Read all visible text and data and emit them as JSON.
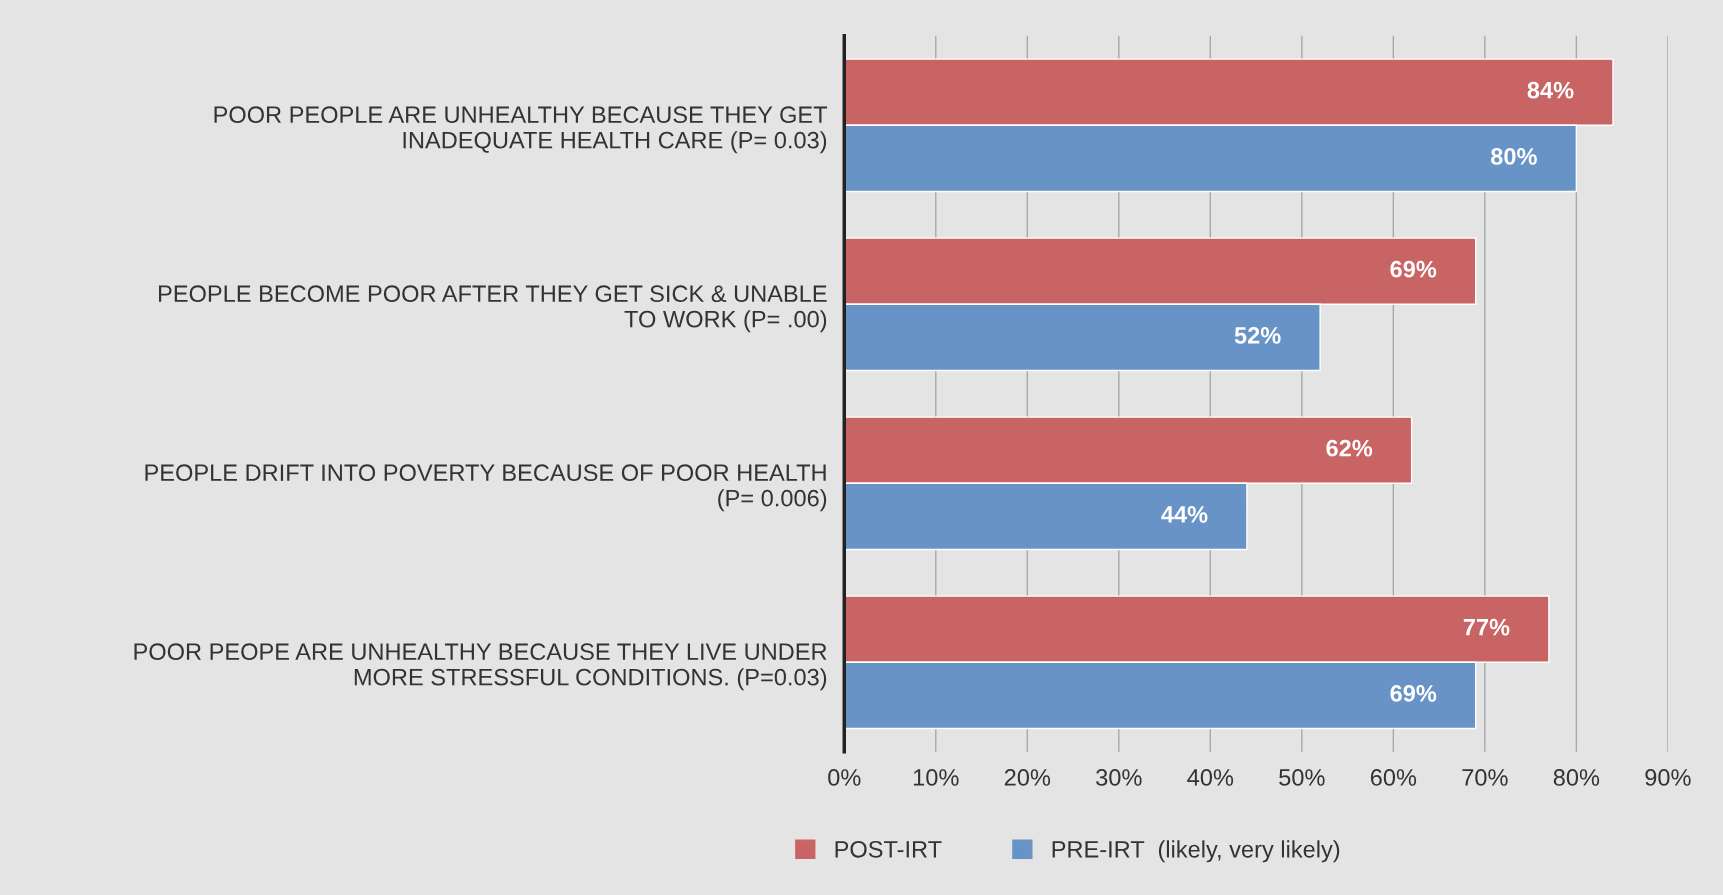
{
  "chart_data": {
    "type": "bar",
    "orientation": "horizontal",
    "categories": [
      "POOR PEOPLE ARE UNHEALTHY BECAUSE THEY GET INADEQUATE HEALTH CARE (P= 0.03)",
      "PEOPLE BECOME POOR AFTER THEY GET SICK & UNABLE TO WORK (P= .00)",
      "PEOPLE DRIFT INTO POVERTY BECAUSE OF POOR HEALTH (P= 0.006)",
      "POOR PEOPE ARE UNHEALTHY BECAUSE THEY LIVE UNDER MORE STRESSFUL CONDITIONS. (P=0.03)"
    ],
    "series": [
      {
        "name": "POST-IRT",
        "color": "#c96464",
        "values": [
          84,
          69,
          62,
          77
        ],
        "value_labels": [
          "84%",
          "69%",
          "62%",
          "77%"
        ]
      },
      {
        "name": "PRE-IRT  (likely, very likely)",
        "color": "#6893c6",
        "values": [
          80,
          52,
          44,
          69
        ],
        "value_labels": [
          "80%",
          "52%",
          "44%",
          "69%"
        ]
      }
    ],
    "xlim": [
      0,
      90
    ],
    "xticks": [
      {
        "value": 0,
        "label": "0%"
      },
      {
        "value": 10,
        "label": "10%"
      },
      {
        "value": 20,
        "label": "20%"
      },
      {
        "value": 30,
        "label": "30%"
      },
      {
        "value": 40,
        "label": "40%"
      },
      {
        "value": 50,
        "label": "50%"
      },
      {
        "value": 60,
        "label": "60%"
      },
      {
        "value": 70,
        "label": "70%"
      },
      {
        "value": 80,
        "label": "80%"
      },
      {
        "value": 90,
        "label": "90%"
      }
    ],
    "grid": "x",
    "legend": "bottom"
  }
}
